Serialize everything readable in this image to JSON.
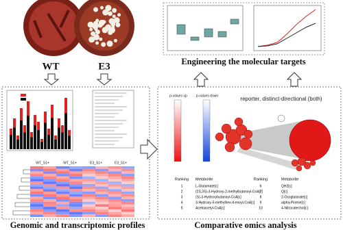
{
  "photos": [
    {
      "label": "WT"
    },
    {
      "label": "E3"
    }
  ],
  "panels": {
    "engineering": {
      "title": "Engineering the molecular targets"
    },
    "genomic": {
      "title": "Genomic and transcriptomic profiles",
      "heatmap_columns": [
        "WT_S1+",
        "WT_S1+",
        "E3_S1+",
        "E3_S1+"
      ]
    },
    "omics": {
      "title": "Comparative omics analysis",
      "network_title": "reporter, distinct-directional (both)",
      "legend": [
        "p-values up",
        "p-values down"
      ],
      "table": {
        "header": [
          "Ranking",
          "Metabolite",
          "Ranking",
          "Metabolite"
        ],
        "rows": [
          [
            "1",
            "L-Glutamate[c]",
            "6",
            "QH2[c]"
          ],
          [
            "2",
            "(2S,3S)-3-Hydroxy-2-methylbutanoyl-CoA[c]",
            "7",
            "Q[c]"
          ],
          [
            "3",
            "(S)-3-Hydroxybutanoyl-CoA[c]",
            "8",
            "2-Oxoglutarate[c]"
          ],
          [
            "4",
            "3-Hydroxy-5-methylhex-4-enoyl-CoA[c]",
            "9",
            "alpha-Pinene[c]"
          ],
          [
            "5",
            "Acetoacetyl-CoA[c]",
            "10",
            "4-Nitrocatechol[c]"
          ]
        ]
      }
    }
  }
}
